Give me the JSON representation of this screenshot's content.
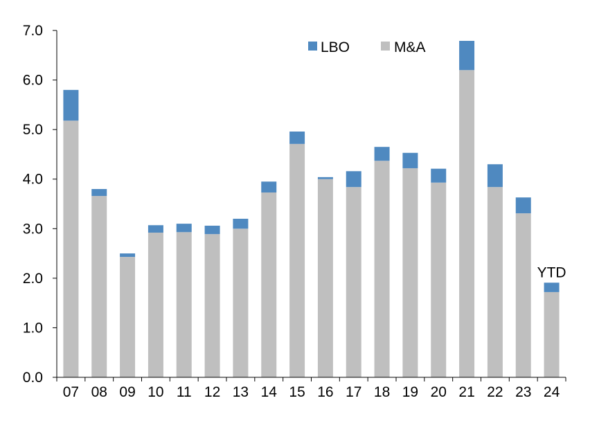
{
  "chart_data": {
    "type": "bar",
    "stacked": true,
    "categories": [
      "07",
      "08",
      "09",
      "10",
      "11",
      "12",
      "13",
      "14",
      "15",
      "16",
      "17",
      "18",
      "19",
      "20",
      "21",
      "22",
      "23",
      "24"
    ],
    "series": [
      {
        "name": "M&A",
        "color": "#bfbfbf",
        "values": [
          5.18,
          3.66,
          2.43,
          2.92,
          2.93,
          2.89,
          3.0,
          3.73,
          4.71,
          4.0,
          3.84,
          4.37,
          4.22,
          3.93,
          6.2,
          3.84,
          3.31,
          1.72
        ]
      },
      {
        "name": "LBO",
        "color": "#4f89c0",
        "values": [
          0.62,
          0.14,
          0.07,
          0.15,
          0.17,
          0.17,
          0.2,
          0.22,
          0.25,
          0.04,
          0.32,
          0.28,
          0.31,
          0.28,
          0.59,
          0.46,
          0.32,
          0.19
        ]
      }
    ],
    "ylim": [
      0,
      7
    ],
    "yticks": [
      "0.0",
      "1.0",
      "2.0",
      "3.0",
      "4.0",
      "5.0",
      "6.0",
      "7.0"
    ],
    "legend": {
      "placement": "top-center",
      "entries": [
        "LBO",
        "M&A"
      ]
    },
    "annotations": [
      {
        "category": "24",
        "text": "YTD"
      }
    ],
    "grid": false
  }
}
